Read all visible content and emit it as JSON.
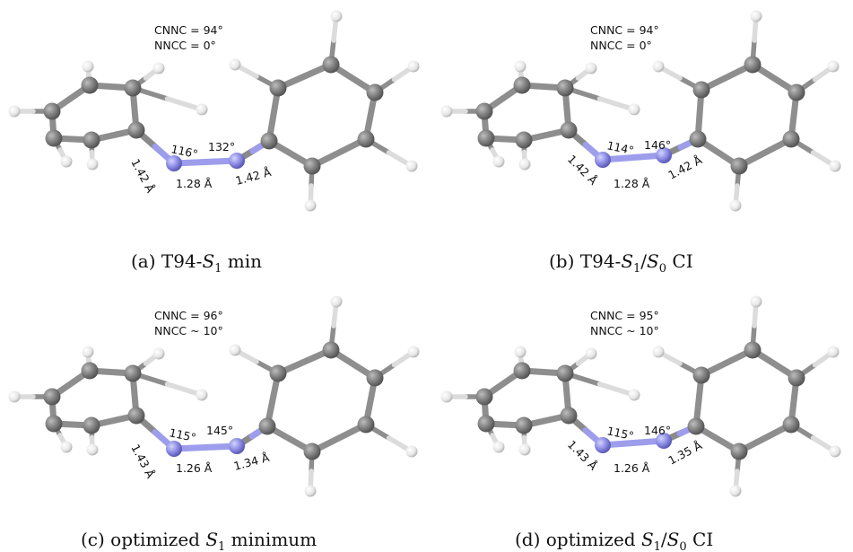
{
  "colors": {
    "carbon": "#7f7f7f",
    "carbon_light": "#b9b9b9",
    "carbon_bond": "#8e8e8e",
    "hydrogen": "#f2f2f2",
    "nitrogen": "#8f8fe6",
    "nitrogen_light": "#c9c9ff",
    "nitrogen_bond": "#9d9dec"
  },
  "panels": [
    {
      "id": "a",
      "cnnc": "CNNC = 94°",
      "nncc": "NNCC = 0°",
      "angle_left": "116°",
      "angle_right": "132°",
      "bond_cn_left": "1.42 Å",
      "bond_nn": "1.28 Å",
      "bond_cn_right": "1.42 Å",
      "caption_prefix": "(a)  T94-",
      "caption_sym": "S",
      "caption_sub": "1",
      "caption_rest": " min",
      "caption_mid": "",
      "caption_sym2": "",
      "caption_sub2": ""
    },
    {
      "id": "b",
      "cnnc": "CNNC = 94°",
      "nncc": "NNCC = 0°",
      "angle_left": "114°",
      "angle_right": "146°",
      "bond_cn_left": "1.42 Å",
      "bond_nn": "1.28 Å",
      "bond_cn_right": "1.42 Å",
      "caption_prefix": "(b)  T94-",
      "caption_sym": "S",
      "caption_sub": "1",
      "caption_mid": "/",
      "caption_sym2": "S",
      "caption_sub2": "0",
      "caption_rest": " CI"
    },
    {
      "id": "c",
      "cnnc": "CNNC = 96°",
      "nncc": "NNCC ~ 10°",
      "angle_left": "115°",
      "angle_right": "145°",
      "bond_cn_left": "1.43 Å",
      "bond_nn": "1.26 Å",
      "bond_cn_right": "1.34 Å",
      "caption_prefix": "(c)  optimized ",
      "caption_sym": "S",
      "caption_sub": "1",
      "caption_rest": " minimum",
      "caption_mid": "",
      "caption_sym2": "",
      "caption_sub2": ""
    },
    {
      "id": "d",
      "cnnc": "CNNC = 95°",
      "nncc": "NNCC ~ 10°",
      "angle_left": "115°",
      "angle_right": "146°",
      "bond_cn_left": "1.43 Å",
      "bond_nn": "1.26 Å",
      "bond_cn_right": "1.35 Å",
      "caption_prefix": "(d)  optimized ",
      "caption_sym": "S",
      "caption_sub": "1",
      "caption_mid": "/",
      "caption_sym2": "S",
      "caption_sub2": "0",
      "caption_rest": " CI"
    }
  ]
}
